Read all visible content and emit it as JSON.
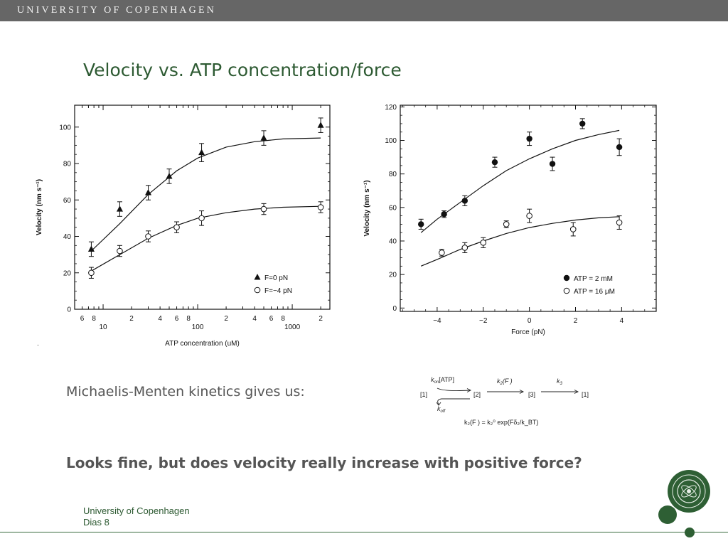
{
  "header": {
    "university": "UNIVERSITY OF COPENHAGEN"
  },
  "slide": {
    "title": "Velocity vs. ATP concentration/force",
    "mm_text": "Michaelis-Menten kinetics gives us:",
    "question": "Looks fine, but does velocity really increase with positive force?",
    "dot": "."
  },
  "scheme": {
    "state1": "[1]",
    "state2": "[2]",
    "state3": "[3]",
    "state1_end": "[1]",
    "kon": "k",
    "kon_sub": "on",
    "kon_atp": "[ATP]",
    "koff": "k",
    "koff_sub": "off",
    "k2": "k",
    "k2_sub": "2",
    "k2_arg": "(F )",
    "k3": "k",
    "k3_sub": "3",
    "equation": "k₂(F ) = k₂⁰ exp(Fδ₂/k_BT)"
  },
  "footer": {
    "line1": "University of Copenhagen",
    "line2": "Dias 8"
  },
  "colors": {
    "accent": "#2d5a32",
    "topbar": "#666666"
  },
  "chart_data": [
    {
      "type": "line",
      "title": "",
      "xlabel": "ATP concentration (uM)",
      "ylabel": "Velocity (nm s⁻¹)",
      "xscale": "log",
      "xlim": [
        5,
        2500
      ],
      "ylim": [
        0,
        112
      ],
      "yticks": [
        0,
        20,
        40,
        60,
        80,
        100
      ],
      "xtick_labels": [
        {
          "value": 6,
          "label": "6"
        },
        {
          "value": 8,
          "label": "8"
        },
        {
          "value": 10,
          "label": "10"
        },
        {
          "value": 20,
          "label": "2"
        },
        {
          "value": 40,
          "label": "4"
        },
        {
          "value": 60,
          "label": "6"
        },
        {
          "value": 80,
          "label": "8"
        },
        {
          "value": 100,
          "label": "100"
        },
        {
          "value": 200,
          "label": "2"
        },
        {
          "value": 400,
          "label": "4"
        },
        {
          "value": 600,
          "label": "6"
        },
        {
          "value": 800,
          "label": "8"
        },
        {
          "value": 1000,
          "label": "1000"
        },
        {
          "value": 2000,
          "label": "2"
        }
      ],
      "legend_position": "bottom-right",
      "series": [
        {
          "name": "F=0 pN",
          "marker": "filled-triangle",
          "x": [
            7.5,
            15,
            30,
            50,
            110,
            500,
            2000
          ],
          "y": [
            33,
            55,
            64,
            73,
            86,
            94,
            101
          ],
          "err": [
            4,
            4,
            4,
            4,
            5,
            4,
            4
          ],
          "fit": [
            [
              7.5,
              32
            ],
            [
              15,
              47
            ],
            [
              30,
              63
            ],
            [
              60,
              76
            ],
            [
              100,
              83
            ],
            [
              200,
              89
            ],
            [
              400,
              92
            ],
            [
              800,
              93.5
            ],
            [
              2000,
              94
            ]
          ]
        },
        {
          "name": "F=−4 pN",
          "marker": "open-circle",
          "x": [
            7.5,
            15,
            30,
            60,
            110,
            500,
            2000
          ],
          "y": [
            20,
            32,
            40,
            45,
            50,
            55,
            56
          ],
          "err": [
            3,
            3,
            3,
            3,
            4,
            3,
            3
          ],
          "fit": [
            [
              7.5,
              21
            ],
            [
              15,
              30
            ],
            [
              30,
              39
            ],
            [
              60,
              46
            ],
            [
              100,
              50
            ],
            [
              200,
              53
            ],
            [
              400,
              55
            ],
            [
              800,
              56
            ],
            [
              2000,
              56.5
            ]
          ]
        }
      ]
    },
    {
      "type": "line",
      "title": "",
      "xlabel": "Force (pN)",
      "ylabel": "Velocity (nm s⁻¹)",
      "xlim": [
        -5.6,
        5.5
      ],
      "ylim": [
        -2,
        121
      ],
      "xticks": [
        -4,
        -2,
        0,
        2,
        4
      ],
      "xtick_labels": [
        "−4",
        "−2",
        "0",
        "2",
        "4"
      ],
      "yticks": [
        0,
        20,
        40,
        60,
        80,
        100,
        120
      ],
      "legend_position": "bottom-right",
      "series": [
        {
          "name": "ATP = 2 mM",
          "marker": "filled-circle",
          "x": [
            -4.7,
            -3.7,
            -2.8,
            -1.5,
            0,
            1,
            2.3,
            3.9
          ],
          "y": [
            50,
            56,
            64,
            87,
            101,
            86,
            110,
            96
          ],
          "err": [
            3,
            2,
            3,
            3,
            4,
            4,
            3,
            5
          ],
          "fit": [
            [
              -4.7,
              45
            ],
            [
              -4,
              53
            ],
            [
              -3,
              63
            ],
            [
              -2,
              73
            ],
            [
              -1,
              82
            ],
            [
              0,
              89
            ],
            [
              1,
              95
            ],
            [
              2,
              100
            ],
            [
              3,
              103.5
            ],
            [
              3.9,
              106
            ]
          ]
        },
        {
          "name": "ATP = 16 μM",
          "marker": "open-circle",
          "x": [
            -3.8,
            -2.8,
            -2,
            -1,
            0,
            1.9,
            3.9
          ],
          "y": [
            33,
            36,
            39,
            50,
            55,
            47,
            51
          ],
          "err": [
            2,
            3,
            3,
            2,
            4,
            4,
            4
          ],
          "fit": [
            [
              -4.7,
              25
            ],
            [
              -4,
              29
            ],
            [
              -3,
              35
            ],
            [
              -2,
              40
            ],
            [
              -1,
              44.5
            ],
            [
              0,
              48
            ],
            [
              1,
              50.5
            ],
            [
              2,
              52.5
            ],
            [
              3,
              53.8
            ],
            [
              3.9,
              54.5
            ]
          ]
        }
      ]
    }
  ]
}
